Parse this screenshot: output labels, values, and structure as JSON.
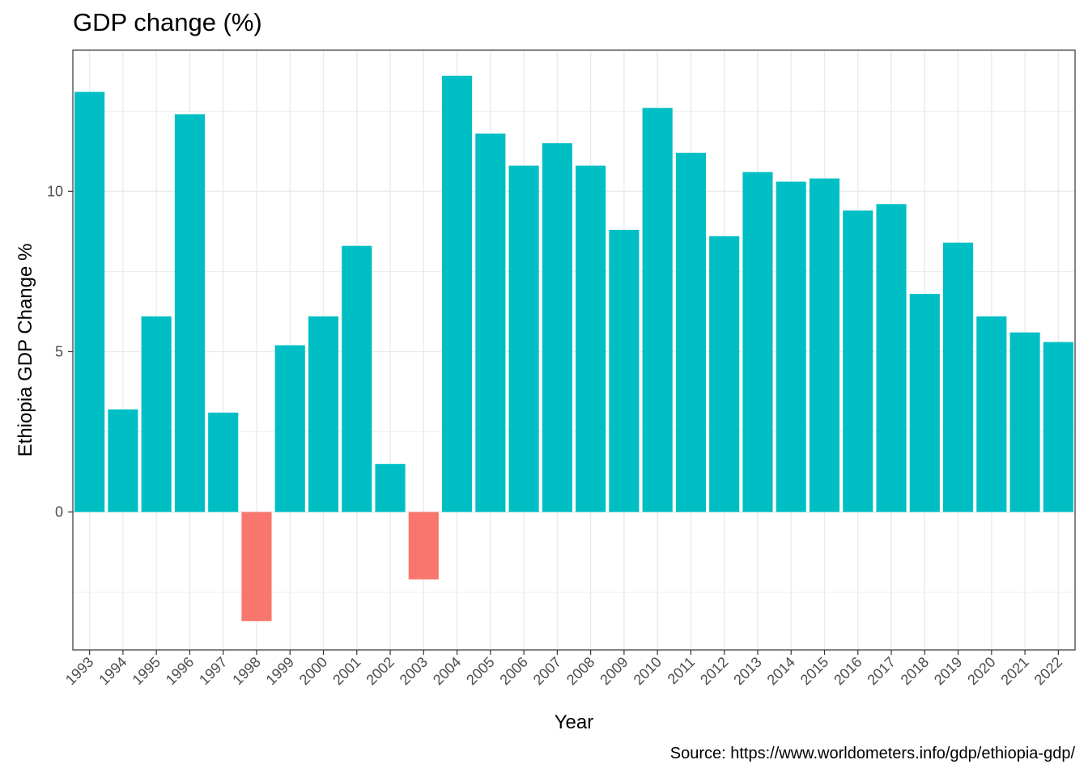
{
  "chart_data": {
    "type": "bar",
    "title": "GDP change (%)",
    "xlabel": "Year",
    "ylabel": "Ethiopia GDP Change %",
    "caption": "Source: https://www.worldometers.info/gdp/ethiopia-gdp/",
    "categories": [
      "1993",
      "1994",
      "1995",
      "1996",
      "1997",
      "1998",
      "1999",
      "2000",
      "2001",
      "2002",
      "2003",
      "2004",
      "2005",
      "2006",
      "2007",
      "2008",
      "2009",
      "2010",
      "2011",
      "2012",
      "2013",
      "2014",
      "2015",
      "2016",
      "2017",
      "2018",
      "2019",
      "2020",
      "2021",
      "2022"
    ],
    "values": [
      13.1,
      3.2,
      6.1,
      12.4,
      3.1,
      -3.4,
      5.2,
      6.1,
      8.3,
      1.5,
      -2.1,
      13.6,
      11.8,
      10.8,
      11.5,
      10.8,
      8.8,
      12.6,
      11.2,
      8.6,
      10.6,
      10.3,
      10.4,
      9.4,
      9.6,
      6.8,
      8.4,
      6.1,
      5.6,
      5.3
    ],
    "ylim": [
      -4.3,
      14.4
    ],
    "yticks": [
      0,
      5,
      10
    ],
    "grid": true,
    "legend": "none",
    "colors": {
      "positive": "#00BFC4",
      "negative": "#F8766D"
    }
  }
}
